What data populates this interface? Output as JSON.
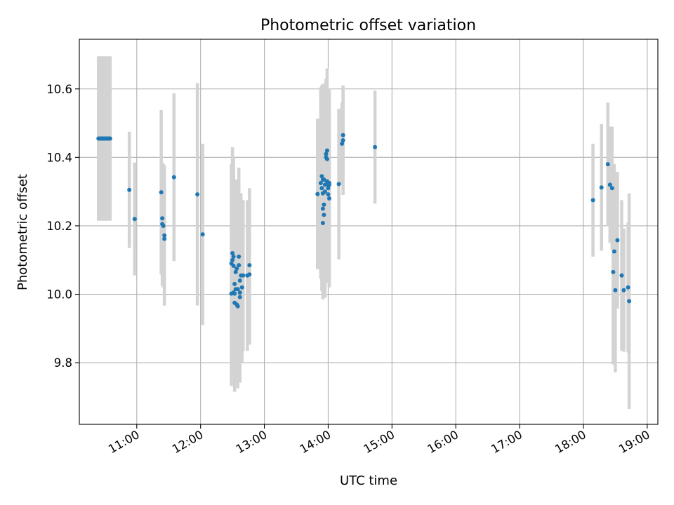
{
  "chart_data": {
    "type": "scatter",
    "title": "Photometric offset variation",
    "xlabel": "UTC time",
    "ylabel": "Photometric offset",
    "xlim": [
      "10:06",
      "19:10"
    ],
    "ylim": [
      9.62,
      10.745
    ],
    "grid": true,
    "x_ticks": [
      "11:00",
      "12:00",
      "13:00",
      "14:00",
      "15:00",
      "16:00",
      "17:00",
      "18:00",
      "19:00"
    ],
    "y_ticks": [
      "9.8",
      "10.0",
      "10.2",
      "10.4",
      "10.6"
    ],
    "colors": {
      "marker": "#1f77b4",
      "errorbar": "#d3d3d3"
    },
    "points": [
      {
        "x": "10:24",
        "y": 10.455,
        "err": 0.24
      },
      {
        "x": "10:25",
        "y": 10.455,
        "err": 0.24
      },
      {
        "x": "10:26",
        "y": 10.455,
        "err": 0.24
      },
      {
        "x": "10:27",
        "y": 10.455,
        "err": 0.24
      },
      {
        "x": "10:28",
        "y": 10.455,
        "err": 0.24
      },
      {
        "x": "10:29",
        "y": 10.455,
        "err": 0.24
      },
      {
        "x": "10:30",
        "y": 10.455,
        "err": 0.24
      },
      {
        "x": "10:31",
        "y": 10.455,
        "err": 0.24
      },
      {
        "x": "10:32",
        "y": 10.455,
        "err": 0.24
      },
      {
        "x": "10:33",
        "y": 10.455,
        "err": 0.24
      },
      {
        "x": "10:34",
        "y": 10.455,
        "err": 0.24
      },
      {
        "x": "10:35",
        "y": 10.455,
        "err": 0.24
      },
      {
        "x": "10:53",
        "y": 10.305,
        "err": 0.17
      },
      {
        "x": "10:58",
        "y": 10.22,
        "err": 0.165
      },
      {
        "x": "11:23",
        "y": 10.298,
        "err": 0.24
      },
      {
        "x": "11:24",
        "y": 10.222,
        "err": 0.16
      },
      {
        "x": "11:24",
        "y": 10.205,
        "err": 0.18
      },
      {
        "x": "11:25",
        "y": 10.2,
        "err": 0.18
      },
      {
        "x": "11:26",
        "y": 10.172,
        "err": 0.205
      },
      {
        "x": "11:26",
        "y": 10.162,
        "err": 0.195
      },
      {
        "x": "11:35",
        "y": 10.342,
        "err": 0.245
      },
      {
        "x": "11:57",
        "y": 10.292,
        "err": 0.325
      },
      {
        "x": "12:02",
        "y": 10.175,
        "err": 0.265
      },
      {
        "x": "12:29",
        "y": 10.002,
        "err": 0.27
      },
      {
        "x": "12:29",
        "y": 10.09,
        "err": 0.29
      },
      {
        "x": "12:30",
        "y": 10.1,
        "err": 0.31
      },
      {
        "x": "12:30",
        "y": 10.12,
        "err": 0.31
      },
      {
        "x": "12:31",
        "y": 10.11,
        "err": 0.29
      },
      {
        "x": "12:31",
        "y": 10.005,
        "err": 0.23
      },
      {
        "x": "12:31",
        "y": 10.083,
        "err": 0.28
      },
      {
        "x": "12:32",
        "y": 10.002,
        "err": 0.25
      },
      {
        "x": "12:32",
        "y": 10.03,
        "err": 0.26
      },
      {
        "x": "12:32",
        "y": 9.975,
        "err": 0.26
      },
      {
        "x": "12:33",
        "y": 10.065,
        "err": 0.27
      },
      {
        "x": "12:33",
        "y": 10.015,
        "err": 0.24
      },
      {
        "x": "12:34",
        "y": 10.075,
        "err": 0.26
      },
      {
        "x": "12:34",
        "y": 9.97,
        "err": 0.2
      },
      {
        "x": "12:35",
        "y": 9.965,
        "err": 0.24
      },
      {
        "x": "12:35",
        "y": 10.015,
        "err": 0.2
      },
      {
        "x": "12:36",
        "y": 10.11,
        "err": 0.26
      },
      {
        "x": "12:36",
        "y": 10.085,
        "err": 0.24
      },
      {
        "x": "12:37",
        "y": 10.04,
        "err": 0.22
      },
      {
        "x": "12:37",
        "y": 10.005,
        "err": 0.23
      },
      {
        "x": "12:37",
        "y": 9.992,
        "err": 0.25
      },
      {
        "x": "12:38",
        "y": 10.055,
        "err": 0.24
      },
      {
        "x": "12:39",
        "y": 10.02,
        "err": 0.22
      },
      {
        "x": "12:40",
        "y": 10.055,
        "err": 0.22
      },
      {
        "x": "12:44",
        "y": 10.055,
        "err": 0.22
      },
      {
        "x": "12:46",
        "y": 10.085,
        "err": 0.225
      },
      {
        "x": "12:46",
        "y": 10.058,
        "err": 0.205
      },
      {
        "x": "13:50",
        "y": 10.293,
        "err": 0.22
      },
      {
        "x": "13:53",
        "y": 10.325,
        "err": 0.28
      },
      {
        "x": "13:54",
        "y": 10.31,
        "err": 0.3
      },
      {
        "x": "13:54",
        "y": 10.345,
        "err": 0.26
      },
      {
        "x": "13:55",
        "y": 10.295,
        "err": 0.31
      },
      {
        "x": "13:55",
        "y": 10.335,
        "err": 0.28
      },
      {
        "x": "13:55",
        "y": 10.25,
        "err": 0.26
      },
      {
        "x": "13:55",
        "y": 10.208,
        "err": 0.22
      },
      {
        "x": "13:56",
        "y": 10.232,
        "err": 0.2
      },
      {
        "x": "13:56",
        "y": 10.262,
        "err": 0.26
      },
      {
        "x": "13:56",
        "y": 10.335,
        "err": 0.28
      },
      {
        "x": "13:57",
        "y": 10.3,
        "err": 0.31
      },
      {
        "x": "13:57",
        "y": 10.32,
        "err": 0.28
      },
      {
        "x": "13:58",
        "y": 10.4,
        "err": 0.21
      },
      {
        "x": "13:58",
        "y": 10.41,
        "err": 0.22
      },
      {
        "x": "13:59",
        "y": 10.42,
        "err": 0.24
      },
      {
        "x": "13:59",
        "y": 10.395,
        "err": 0.21
      },
      {
        "x": "13:59",
        "y": 10.33,
        "err": 0.23
      },
      {
        "x": "14:00",
        "y": 10.32,
        "err": 0.24
      },
      {
        "x": "14:00",
        "y": 10.31,
        "err": 0.27
      },
      {
        "x": "14:00",
        "y": 10.292,
        "err": 0.26
      },
      {
        "x": "14:01",
        "y": 10.28,
        "err": 0.26
      },
      {
        "x": "14:01",
        "y": 10.325,
        "err": 0.27
      },
      {
        "x": "14:01",
        "y": 10.32,
        "err": 0.28
      },
      {
        "x": "14:10",
        "y": 10.322,
        "err": 0.22
      },
      {
        "x": "14:13",
        "y": 10.44,
        "err": 0.12
      },
      {
        "x": "14:14",
        "y": 10.465,
        "err": 0.12
      },
      {
        "x": "14:14",
        "y": 10.45,
        "err": 0.16
      },
      {
        "x": "14:44",
        "y": 10.43,
        "err": 0.165
      },
      {
        "x": "18:09",
        "y": 10.275,
        "err": 0.165
      },
      {
        "x": "18:17",
        "y": 10.312,
        "err": 0.185
      },
      {
        "x": "18:23",
        "y": 10.38,
        "err": 0.18
      },
      {
        "x": "18:25",
        "y": 10.32,
        "err": 0.17
      },
      {
        "x": "18:27",
        "y": 10.31,
        "err": 0.18
      },
      {
        "x": "18:28",
        "y": 10.065,
        "err": 0.27
      },
      {
        "x": "18:29",
        "y": 10.125,
        "err": 0.255
      },
      {
        "x": "18:30",
        "y": 10.012,
        "err": 0.24
      },
      {
        "x": "18:32",
        "y": 10.158,
        "err": 0.2
      },
      {
        "x": "18:36",
        "y": 10.055,
        "err": 0.22
      },
      {
        "x": "18:38",
        "y": 10.012,
        "err": 0.18
      },
      {
        "x": "18:42",
        "y": 10.02,
        "err": 0.19
      },
      {
        "x": "18:43",
        "y": 9.98,
        "err": 0.315
      }
    ]
  }
}
